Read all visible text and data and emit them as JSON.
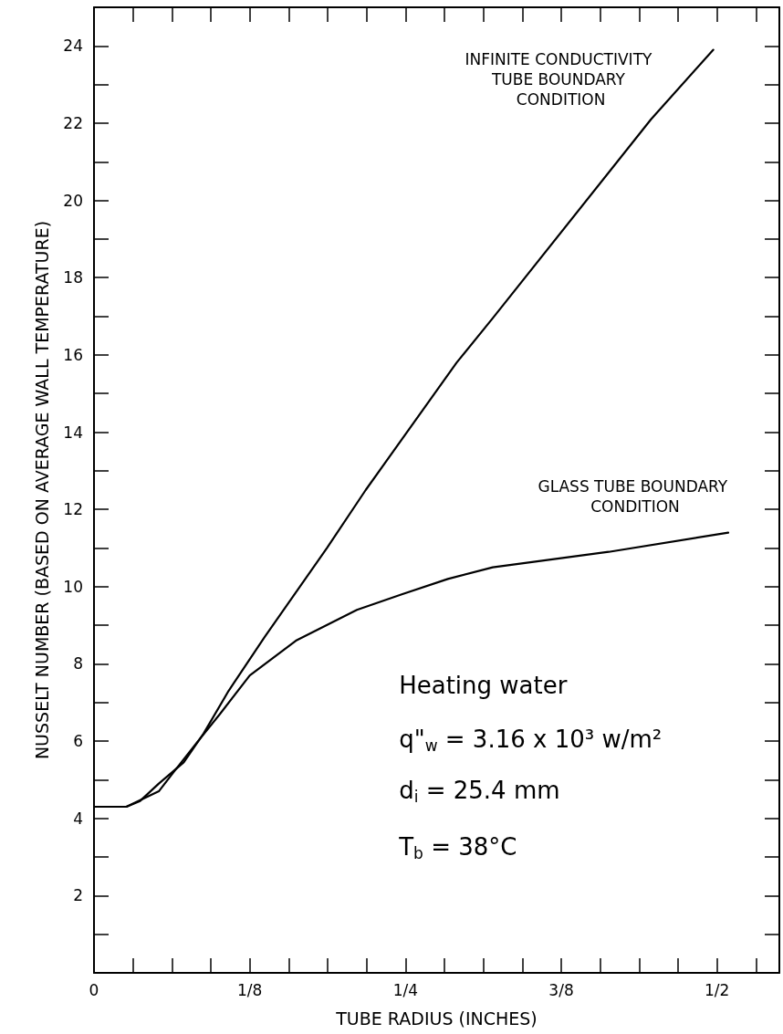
{
  "chart_data": {
    "type": "line",
    "xlabel": "TUBE RADIUS (INCHES)",
    "ylabel": "NUSSELT NUMBER (BASED ON AVERAGE WALL TEMPERATURE)",
    "xlim": [
      0,
      0.55
    ],
    "xticks": [
      {
        "value": 0,
        "label": "0"
      },
      {
        "value": 0.03125,
        "label": null
      },
      {
        "value": 0.0625,
        "label": null
      },
      {
        "value": 0.09375,
        "label": null
      },
      {
        "value": 0.125,
        "label": "1/8"
      },
      {
        "value": 0.15625,
        "label": null
      },
      {
        "value": 0.1875,
        "label": null
      },
      {
        "value": 0.21875,
        "label": null
      },
      {
        "value": 0.25,
        "label": "1/4"
      },
      {
        "value": 0.28125,
        "label": null
      },
      {
        "value": 0.3125,
        "label": null
      },
      {
        "value": 0.34375,
        "label": null
      },
      {
        "value": 0.375,
        "label": "3/8"
      },
      {
        "value": 0.40625,
        "label": null
      },
      {
        "value": 0.4375,
        "label": null
      },
      {
        "value": 0.46875,
        "label": null
      },
      {
        "value": 0.5,
        "label": "1/2"
      },
      {
        "value": 0.53125,
        "label": null
      }
    ],
    "ylim": [
      0,
      25
    ],
    "yticks": [
      {
        "value": 0,
        "label": null
      },
      {
        "value": 1,
        "label": null
      },
      2,
      {
        "value": 3,
        "label": null
      },
      4,
      {
        "value": 5,
        "label": null
      },
      6,
      {
        "value": 7,
        "label": null
      },
      8,
      {
        "value": 9,
        "label": null
      },
      10,
      {
        "value": 11,
        "label": null
      },
      12,
      {
        "value": 13,
        "label": null
      },
      14,
      {
        "value": 15,
        "label": null
      },
      16,
      {
        "value": 17,
        "label": null
      },
      18,
      {
        "value": 19,
        "label": null
      },
      20,
      {
        "value": 21,
        "label": null
      },
      22,
      {
        "value": 23,
        "label": null
      },
      24
    ],
    "grid": false,
    "legend": false,
    "marker": "none",
    "line_style": "solid",
    "series": [
      {
        "name": "INFINITE CONDUCTIVITY TUBE BOUNDARY CONDITION",
        "color": "#000000",
        "x": [
          0,
          0.026,
          0.037,
          0.052,
          0.072,
          0.088,
          0.108,
          0.137,
          0.187,
          0.218,
          0.291,
          0.32,
          0.447,
          0.497
        ],
        "values": [
          4.3,
          4.3,
          4.45,
          4.9,
          5.45,
          6.2,
          7.3,
          8.7,
          11.0,
          12.5,
          15.8,
          16.95,
          22.1,
          23.9
        ]
      },
      {
        "name": "GLASS TUBE BOUNDARY CONDITION",
        "color": "#000000",
        "x": [
          0,
          0.026,
          0.052,
          0.064,
          0.081,
          0.101,
          0.125,
          0.162,
          0.211,
          0.247,
          0.284,
          0.32,
          0.413,
          0.509
        ],
        "values": [
          4.3,
          4.3,
          4.7,
          5.2,
          5.9,
          6.7,
          7.7,
          8.6,
          9.4,
          9.8,
          10.2,
          10.5,
          10.9,
          11.4
        ]
      }
    ],
    "annotations": [
      "Heating water",
      "q\"$_{w}$ = 3.16 x 10³ w/m²",
      "d$_{i}$ = 25.4 mm",
      "T$_{b}$ = 38°C"
    ]
  }
}
